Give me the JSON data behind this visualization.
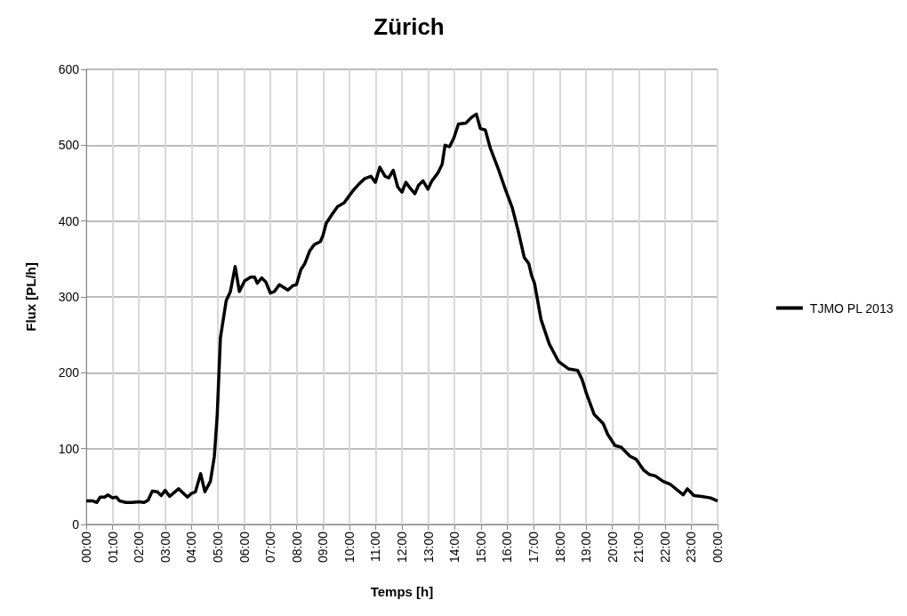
{
  "chart_data": {
    "type": "line",
    "title": "Zürich",
    "xlabel": "Temps [h]",
    "ylabel": "Flux [PL/h]",
    "x": [
      0,
      0.25,
      0.4,
      0.53,
      0.7,
      0.82,
      1.0,
      1.15,
      1.27,
      1.5,
      1.75,
      2.0,
      2.2,
      2.35,
      2.51,
      2.7,
      2.85,
      3.0,
      3.17,
      3.51,
      3.85,
      4.0,
      4.15,
      4.35,
      4.51,
      4.72,
      4.87,
      4.98,
      5.1,
      5.32,
      5.48,
      5.66,
      5.82,
      6.02,
      6.25,
      6.4,
      6.5,
      6.67,
      6.82,
      7.0,
      7.15,
      7.34,
      7.66,
      7.86,
      7.99,
      8.16,
      8.31,
      8.5,
      8.67,
      8.9,
      9.0,
      9.12,
      9.33,
      9.55,
      9.8,
      9.97,
      10.14,
      10.37,
      10.59,
      10.82,
      10.99,
      11.16,
      11.36,
      11.5,
      11.67,
      11.84,
      12.0,
      12.15,
      12.32,
      12.49,
      12.63,
      12.8,
      12.99,
      13.14,
      13.36,
      13.53,
      13.64,
      13.81,
      13.98,
      14.15,
      14.43,
      14.66,
      14.83,
      14.98,
      15.17,
      15.36,
      15.68,
      15.93,
      16.19,
      16.42,
      16.65,
      16.82,
      16.93,
      17.04,
      17.29,
      17.6,
      17.95,
      18.1,
      18.34,
      18.68,
      18.85,
      19.02,
      19.31,
      19.65,
      19.82,
      20.1,
      20.33,
      20.67,
      20.9,
      21.18,
      21.4,
      21.63,
      21.92,
      22.2,
      22.48,
      22.69,
      22.85,
      23.1,
      23.39,
      23.73,
      24.0
    ],
    "series": [
      {
        "name": "TJMO PL 2013",
        "color": "#000000",
        "values": [
          31,
          31,
          29,
          36,
          36,
          39,
          35,
          36,
          31,
          29,
          29,
          30,
          29,
          32,
          44,
          43,
          38,
          45,
          37,
          47,
          36,
          41,
          43,
          67,
          43,
          57,
          90,
          145,
          246,
          295,
          307,
          340,
          307,
          321,
          326,
          326,
          318,
          325,
          320,
          305,
          307,
          316,
          309,
          315,
          316,
          336,
          344,
          361,
          369,
          373,
          381,
          397,
          408,
          419,
          424,
          432,
          440,
          449,
          456,
          459,
          451,
          471,
          459,
          457,
          467,
          445,
          438,
          451,
          443,
          436,
          447,
          453,
          442,
          453,
          463,
          475,
          500,
          498,
          510,
          528,
          529,
          537,
          541,
          522,
          520,
          496,
          467,
          442,
          418,
          387,
          352,
          344,
          328,
          318,
          270,
          238,
          215,
          211,
          205,
          203,
          191,
          172,
          145,
          133,
          119,
          104,
          102,
          90,
          86,
          72,
          66,
          64,
          57,
          53,
          45,
          39,
          47,
          38,
          37,
          35,
          31
        ]
      }
    ],
    "xlim": [
      0,
      24
    ],
    "xticks": [
      {
        "value": 0,
        "label": "00:00"
      },
      {
        "value": 1,
        "label": "01:00"
      },
      {
        "value": 2,
        "label": "02:00"
      },
      {
        "value": 3,
        "label": "03:00"
      },
      {
        "value": 4,
        "label": "04:00"
      },
      {
        "value": 5,
        "label": "05:00"
      },
      {
        "value": 6,
        "label": "06:00"
      },
      {
        "value": 7,
        "label": "07:00"
      },
      {
        "value": 8,
        "label": "08:00"
      },
      {
        "value": 9,
        "label": "09:00"
      },
      {
        "value": 10,
        "label": "10:00"
      },
      {
        "value": 11,
        "label": "11:00"
      },
      {
        "value": 12,
        "label": "12:00"
      },
      {
        "value": 13,
        "label": "13:00"
      },
      {
        "value": 14,
        "label": "14:00"
      },
      {
        "value": 15,
        "label": "15:00"
      },
      {
        "value": 16,
        "label": "16:00"
      },
      {
        "value": 17,
        "label": "17:00"
      },
      {
        "value": 18,
        "label": "18:00"
      },
      {
        "value": 19,
        "label": "19:00"
      },
      {
        "value": 20,
        "label": "20:00"
      },
      {
        "value": 21,
        "label": "21:00"
      },
      {
        "value": 22,
        "label": "22:00"
      },
      {
        "value": 23,
        "label": "23:00"
      },
      {
        "value": 24,
        "label": "00:00"
      }
    ],
    "ylim": [
      0,
      600
    ],
    "yticks": [
      0,
      100,
      200,
      300,
      400,
      500,
      600
    ],
    "grid": true,
    "legend": "right",
    "marker": "none",
    "line_style": "solid"
  }
}
